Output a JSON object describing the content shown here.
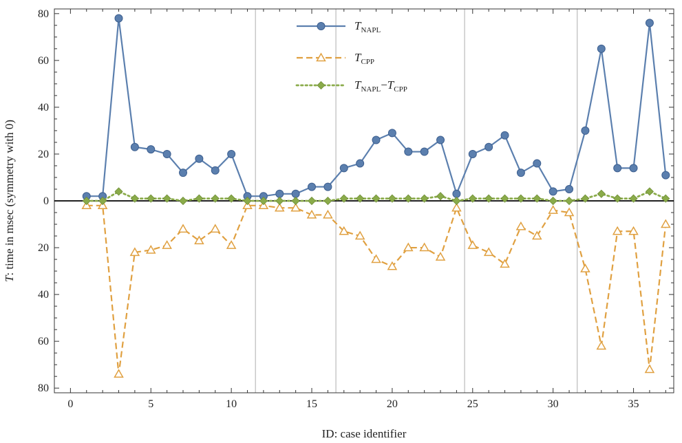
{
  "chart_data": {
    "type": "line",
    "xlabel": "ID: case identifier",
    "ylabel_symbol": "T",
    "ylabel_rest": ": time in msec (symmetry with 0)",
    "xlim": [
      -1,
      37.5
    ],
    "ylim": [
      -82,
      82
    ],
    "xticks": [
      0,
      5,
      10,
      15,
      20,
      25,
      30,
      35
    ],
    "yticks": [
      -80,
      -60,
      -40,
      -20,
      0,
      20,
      40,
      60,
      80
    ],
    "ytick_labels": [
      "80",
      "60",
      "40",
      "20",
      "0",
      "20",
      "40",
      "60",
      "80"
    ],
    "vertical_lines": [
      11.5,
      16.5,
      24.5,
      31.5
    ],
    "grid": false,
    "legend_position": "top-center",
    "x": [
      1,
      2,
      3,
      4,
      5,
      6,
      7,
      8,
      9,
      10,
      11,
      12,
      13,
      14,
      15,
      16,
      17,
      18,
      19,
      20,
      21,
      22,
      23,
      24,
      25,
      26,
      27,
      28,
      29,
      30,
      31,
      32,
      33,
      34,
      35,
      36,
      37
    ],
    "series": [
      {
        "name_main": "T",
        "name_sub": "NAPL",
        "color": "#5b7fae",
        "style": "solid",
        "marker": "circle",
        "values": [
          2,
          2,
          78,
          23,
          22,
          20,
          12,
          18,
          13,
          20,
          2,
          2,
          3,
          3,
          6,
          6,
          14,
          16,
          26,
          29,
          21,
          21,
          26,
          3,
          20,
          23,
          28,
          12,
          16,
          4,
          5,
          30,
          65,
          14,
          14,
          76,
          11
        ]
      },
      {
        "name_main": "T",
        "name_sub": "CPP",
        "color": "#e0a040",
        "style": "dashed",
        "marker": "triangle",
        "values": [
          -2,
          -2,
          -74,
          -22,
          -21,
          -19,
          -12,
          -17,
          -12,
          -19,
          -2,
          -2,
          -3,
          -3,
          -6,
          -6,
          -13,
          -15,
          -25,
          -28,
          -20,
          -20,
          -24,
          -3,
          -19,
          -22,
          -27,
          -11,
          -15,
          -4,
          -5,
          -29,
          -62,
          -13,
          -13,
          -72,
          -10
        ]
      },
      {
        "name_main": "T",
        "name_sub": "NAPL",
        "name_main2": "T",
        "name_sub2": "CPP",
        "name_op": "−",
        "color": "#8aab4a",
        "style": "dotted",
        "marker": "diamond",
        "values": [
          0,
          0,
          4,
          1,
          1,
          1,
          0,
          1,
          1,
          1,
          0,
          0,
          0,
          0,
          0,
          0,
          1,
          1,
          1,
          1,
          1,
          1,
          2,
          0,
          1,
          1,
          1,
          1,
          1,
          0,
          0,
          1,
          3,
          1,
          1,
          4,
          1
        ]
      }
    ]
  }
}
